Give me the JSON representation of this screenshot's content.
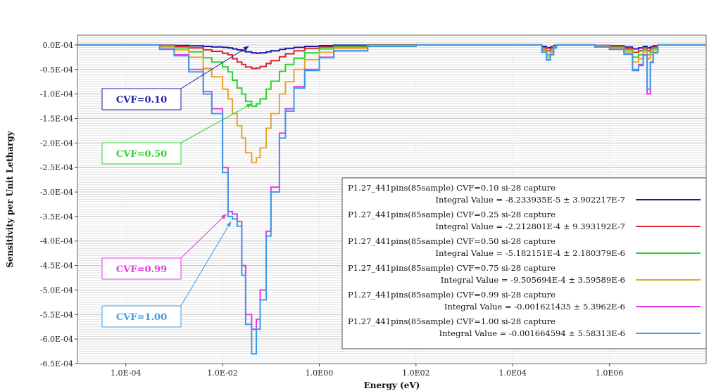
{
  "chart_data": {
    "type": "line",
    "xscale": "log",
    "xlim": [
      1e-05,
      100000000
    ],
    "ylim": [
      -0.00065,
      2e-05
    ],
    "xlabel": "Energy (eV)",
    "ylabel": "Sensitivity per Unit Lethargy",
    "x_ticks": [
      {
        "value": 0.0001,
        "label": "1.0E-04"
      },
      {
        "value": 0.01,
        "label": "1.0E-02"
      },
      {
        "value": 1,
        "label": "1.0E00"
      },
      {
        "value": 100,
        "label": "1.0E02"
      },
      {
        "value": 10000,
        "label": "1.0E04"
      },
      {
        "value": 1000000,
        "label": "1.0E06"
      }
    ],
    "y_ticks": [
      {
        "value": 0.0,
        "label": "0.0E-04"
      },
      {
        "value": -5e-05,
        "label": "-0.5E-04"
      },
      {
        "value": -0.0001,
        "label": "-1.0E-04"
      },
      {
        "value": -0.00015,
        "label": "-1.5E-04"
      },
      {
        "value": -0.0002,
        "label": "-2.0E-04"
      },
      {
        "value": -0.00025,
        "label": "-2.5E-04"
      },
      {
        "value": -0.0003,
        "label": "-3.0E-04"
      },
      {
        "value": -0.00035,
        "label": "-3.5E-04"
      },
      {
        "value": -0.0004,
        "label": "-4.0E-04"
      },
      {
        "value": -0.00045,
        "label": "-4.5E-04"
      },
      {
        "value": -0.0005,
        "label": "-5.0E-04"
      },
      {
        "value": -0.00055,
        "label": "-5.5E-04"
      },
      {
        "value": -0.0006,
        "label": "-6.0E-04"
      },
      {
        "value": -0.00065,
        "label": "-6.5E-04"
      }
    ],
    "grid": "horizontal",
    "legend_position": "bottom-right",
    "series": [
      {
        "name": "P1.27_441pins(85sample) CVF=0.10 si-28 capture",
        "integral": "Integral Value = -8.233935E-5 ± 3.902217E-7",
        "color": "#1a1aa6",
        "x": [
          1e-05,
          0.0001,
          0.0005,
          0.001,
          0.002,
          0.004,
          0.006,
          0.01,
          0.013,
          0.016,
          0.02,
          0.025,
          0.03,
          0.04,
          0.05,
          0.06,
          0.08,
          0.1,
          0.15,
          0.2,
          0.3,
          0.5,
          1,
          2,
          10,
          100,
          1000,
          10000,
          40000,
          50000,
          60000,
          70000,
          80000,
          100000,
          200000,
          500000,
          1000000,
          2000000,
          3000000,
          4000000,
          5000000,
          6000000,
          7000000,
          8000000,
          10000000,
          20000000
        ],
        "y": [
          0.0,
          0.0,
          -5e-07,
          -1e-06,
          -2e-06,
          -3e-06,
          -4e-06,
          -5e-06,
          -6e-06,
          -8e-06,
          -1e-05,
          -1.2e-05,
          -1.4e-05,
          -1.6e-05,
          -1.7e-05,
          -1.6e-05,
          -1.4e-05,
          -1.2e-05,
          -9e-06,
          -7e-06,
          -5e-06,
          -3e-06,
          -1.5e-06,
          -5e-07,
          0.0,
          0.0,
          0.0,
          0.0,
          -3e-06,
          -6e-06,
          -4e-06,
          -1e-06,
          0.0,
          0.0,
          0.0,
          -1e-06,
          -2e-06,
          -4e-06,
          -8e-06,
          -6e-06,
          -3e-06,
          -6e-06,
          -4e-06,
          -2e-06,
          0.0,
          0.0
        ]
      },
      {
        "name": "P1.27_441pins(85sample) CVF=0.25 si-28 capture",
        "integral": "Integral Value = -2.212801E-4 ± 9.393192E-7",
        "color": "#d62a2a",
        "x": [
          1e-05,
          0.0001,
          0.0005,
          0.001,
          0.002,
          0.004,
          0.006,
          0.01,
          0.013,
          0.016,
          0.02,
          0.025,
          0.03,
          0.04,
          0.05,
          0.06,
          0.08,
          0.1,
          0.15,
          0.2,
          0.3,
          0.5,
          1,
          2,
          10,
          100,
          1000,
          10000,
          40000,
          50000,
          60000,
          70000,
          80000,
          100000,
          200000,
          500000,
          1000000,
          2000000,
          3000000,
          4000000,
          5000000,
          6000000,
          7000000,
          8000000,
          10000000,
          20000000
        ],
        "y": [
          0.0,
          0.0,
          -1e-06,
          -3e-06,
          -6e-06,
          -1e-05,
          -1.3e-05,
          -1.7e-05,
          -2e-05,
          -2.8e-05,
          -3.5e-05,
          -4e-05,
          -4.5e-05,
          -4.8e-05,
          -4.7e-05,
          -4.4e-05,
          -3.8e-05,
          -3.2e-05,
          -2.4e-05,
          -1.8e-05,
          -1.2e-05,
          -7e-06,
          -4e-06,
          -2e-06,
          -5e-07,
          0.0,
          0.0,
          0.0,
          -6e-06,
          -1.2e-05,
          -8e-06,
          -2e-06,
          0.0,
          0.0,
          0.0,
          -1e-06,
          -3e-06,
          -7e-06,
          -1.5e-05,
          -1.2e-05,
          -6e-06,
          -1.2e-05,
          -8e-06,
          -4e-06,
          0.0,
          0.0
        ]
      },
      {
        "name": "P1.27_441pins(85sample) CVF=0.50 si-28 capture",
        "integral": "Integral Value = -5.182151E-4 ± 2.180379E-6",
        "color": "#2ed12e",
        "x": [
          1e-05,
          0.0001,
          0.0005,
          0.001,
          0.002,
          0.004,
          0.006,
          0.01,
          0.013,
          0.016,
          0.02,
          0.025,
          0.03,
          0.04,
          0.05,
          0.06,
          0.08,
          0.1,
          0.15,
          0.2,
          0.3,
          0.5,
          1,
          2,
          10,
          100,
          1000,
          10000,
          40000,
          50000,
          60000,
          70000,
          80000,
          100000,
          200000,
          500000,
          1000000,
          2000000,
          3000000,
          4000000,
          5000000,
          6000000,
          7000000,
          8000000,
          10000000,
          20000000
        ],
        "y": [
          0.0,
          0.0,
          -2e-06,
          -6e-06,
          -1.4e-05,
          -2.6e-05,
          -3.5e-05,
          -4.5e-05,
          -5.5e-05,
          -7.2e-05,
          -8.8e-05,
          -0.0001,
          -0.000115,
          -0.000125,
          -0.00012,
          -0.00011,
          -9e-05,
          -7.4e-05,
          -5.4e-05,
          -4e-05,
          -2.7e-05,
          -1.6e-05,
          -8e-06,
          -4e-06,
          -1e-06,
          0.0,
          0.0,
          0.0,
          -1e-05,
          -2e-05,
          -1.3e-05,
          -4e-06,
          0.0,
          0.0,
          0.0,
          -2e-06,
          -5e-06,
          -1e-05,
          -2.5e-05,
          -2e-05,
          -1e-05,
          -2e-05,
          -1.4e-05,
          -7e-06,
          0.0,
          0.0
        ]
      },
      {
        "name": "P1.27_441pins(85sample) CVF=0.75 si-28 capture",
        "integral": "Integral Value = -9.505694E-4 ± 3.59589E-6",
        "color": "#e3a52a",
        "x": [
          1e-05,
          0.0001,
          0.0005,
          0.001,
          0.002,
          0.004,
          0.006,
          0.01,
          0.013,
          0.016,
          0.02,
          0.025,
          0.03,
          0.04,
          0.05,
          0.06,
          0.08,
          0.1,
          0.15,
          0.2,
          0.3,
          0.5,
          1,
          2,
          10,
          100,
          1000,
          10000,
          40000,
          50000,
          60000,
          70000,
          80000,
          100000,
          200000,
          500000,
          1000000,
          2000000,
          3000000,
          4000000,
          5000000,
          6000000,
          7000000,
          8000000,
          10000000,
          20000000
        ],
        "y": [
          0.0,
          0.0,
          -4e-06,
          -1e-05,
          -2.5e-05,
          -4.8e-05,
          -6.5e-05,
          -9e-05,
          -0.00011,
          -0.00014,
          -0.000165,
          -0.00019,
          -0.00022,
          -0.00024,
          -0.00023,
          -0.00021,
          -0.00017,
          -0.00014,
          -0.0001,
          -7.5e-05,
          -5e-05,
          -3e-05,
          -1.5e-05,
          -7e-06,
          -2e-06,
          0.0,
          0.0,
          0.0,
          -1.2e-05,
          -2.5e-05,
          -1.6e-05,
          -5e-06,
          0.0,
          0.0,
          0.0,
          -3e-06,
          -7e-06,
          -1.4e-05,
          -3.5e-05,
          -2.8e-05,
          -1.4e-05,
          -2.8e-05,
          -2e-05,
          -1e-05,
          0.0,
          0.0
        ]
      },
      {
        "name": "P1.27_441pins(85sample) CVF=0.99 si-28 capture",
        "integral": "Integral Value = -0.001621435 ± 5.3962E-6",
        "color": "#e23ae2",
        "x": [
          1e-05,
          0.0001,
          0.0005,
          0.001,
          0.002,
          0.004,
          0.006,
          0.01,
          0.013,
          0.016,
          0.02,
          0.025,
          0.03,
          0.04,
          0.05,
          0.06,
          0.08,
          0.1,
          0.15,
          0.2,
          0.3,
          0.5,
          1,
          2,
          10,
          100,
          1000,
          10000,
          40000,
          50000,
          60000,
          70000,
          80000,
          100000,
          200000,
          500000,
          1000000,
          2000000,
          3000000,
          4000000,
          5000000,
          6000000,
          7000000,
          8000000,
          10000000,
          20000000
        ],
        "y": [
          0.0,
          0.0,
          -8e-06,
          -2e-05,
          -5e-05,
          -9.5e-05,
          -0.00013,
          -0.00025,
          -0.00034,
          -0.000345,
          -0.00036,
          -0.00045,
          -0.00055,
          -0.00058,
          -0.00056,
          -0.0005,
          -0.00038,
          -0.00029,
          -0.00018,
          -0.00013,
          -8.5e-05,
          -5e-05,
          -2.5e-05,
          -1.2e-05,
          -3e-06,
          0.0,
          0.0,
          0.0,
          -1.5e-05,
          -3e-05,
          -2e-05,
          -6e-06,
          0.0,
          0.0,
          0.0,
          -4e-06,
          -9e-06,
          -1.8e-05,
          -5e-05,
          -4e-05,
          -2e-05,
          -0.0001,
          -3.5e-05,
          -1.5e-05,
          0.0,
          0.0
        ]
      },
      {
        "name": "P1.27_441pins(85sample) CVF=1.00 si-28 capture",
        "integral": "Integral Value = -0.001664594 ± 5.58313E-6",
        "color": "#3a9be8",
        "x": [
          1e-05,
          0.0001,
          0.0005,
          0.001,
          0.002,
          0.004,
          0.006,
          0.01,
          0.013,
          0.016,
          0.02,
          0.025,
          0.03,
          0.04,
          0.05,
          0.06,
          0.08,
          0.1,
          0.15,
          0.2,
          0.3,
          0.5,
          1,
          2,
          10,
          100,
          1000,
          10000,
          40000,
          50000,
          60000,
          70000,
          80000,
          100000,
          200000,
          500000,
          1000000,
          2000000,
          3000000,
          4000000,
          5000000,
          6000000,
          7000000,
          8000000,
          10000000,
          20000000
        ],
        "y": [
          0.0,
          0.0,
          -9e-06,
          -2.2e-05,
          -5.5e-05,
          -0.0001,
          -0.00014,
          -0.00026,
          -0.00035,
          -0.000355,
          -0.00037,
          -0.00047,
          -0.00057,
          -0.00063,
          -0.00058,
          -0.00052,
          -0.00039,
          -0.0003,
          -0.00019,
          -0.000135,
          -8.8e-05,
          -5.2e-05,
          -2.6e-05,
          -1.2e-05,
          -3e-06,
          0.0,
          0.0,
          0.0,
          -1.5e-05,
          -3.1e-05,
          -2e-05,
          -6e-06,
          0.0,
          0.0,
          0.0,
          -4e-06,
          -9e-06,
          -1.9e-05,
          -5.2e-05,
          -4.2e-05,
          -2.1e-05,
          -9e-05,
          -3.6e-05,
          -1.6e-05,
          0.0,
          0.0
        ]
      }
    ],
    "annotations": [
      {
        "text": "CVF=0.10",
        "color": "#1a1aa6",
        "target_x": 0.035,
        "target_y": -2.5e-06
      },
      {
        "text": "CVF=0.50",
        "color": "#2ed12e",
        "target_x": 0.04,
        "target_y": -0.00012
      },
      {
        "text": "CVF=0.99",
        "color": "#e23ae2",
        "target_x": 0.012,
        "target_y": -0.000345
      },
      {
        "text": "CVF=1.00",
        "color": "#3a9be8",
        "target_x": 0.015,
        "target_y": -0.00036
      }
    ]
  }
}
